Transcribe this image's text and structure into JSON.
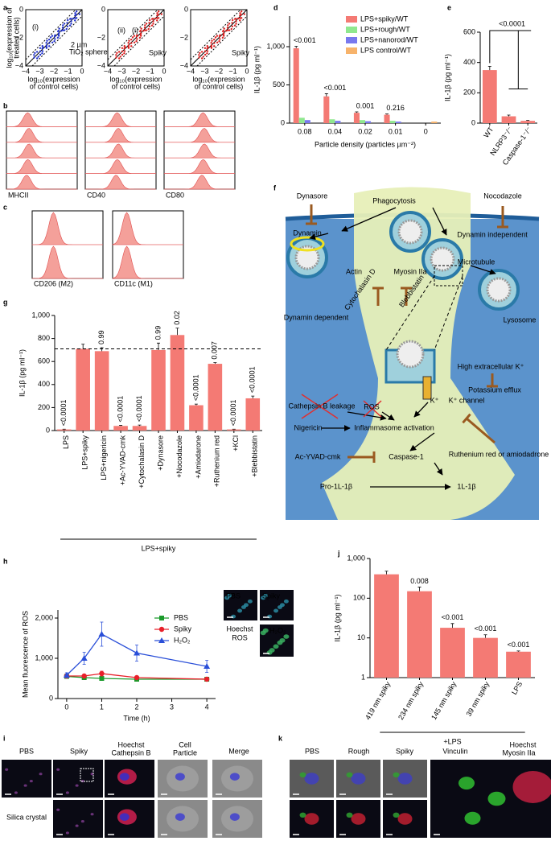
{
  "panels": [
    "a",
    "b",
    "c",
    "d",
    "e",
    "f",
    "g",
    "h",
    "i",
    "j",
    "k"
  ],
  "panel_a": {
    "y_label": [
      "log₁₀(expression of",
      "treated cells)"
    ],
    "x_label": [
      "log₁₀(expression",
      "of control cells)"
    ],
    "x_ticks": [
      "−4",
      "−3",
      "−2",
      "−1",
      "0"
    ],
    "y_ticks": [
      "0",
      "−2",
      "−4"
    ],
    "labels": [
      "(i)",
      "2 µm",
      "TiO₂ sphere",
      "(ii)",
      "(i)",
      "Spiky",
      "Spiky"
    ]
  },
  "panel_b": {
    "labels": [
      "MHCII",
      "CD40",
      "CD80"
    ]
  },
  "panel_c": {
    "labels": [
      "CD206 (M2)",
      "CD11c (M1)"
    ]
  },
  "panel_f": {
    "labels": [
      "Dynasore",
      "Phagocytosis",
      "Nocodazole",
      "Dynamin",
      "Dynamin independent",
      "Actin",
      "Myosin IIa",
      "Microtubule",
      "Dynamin dependent",
      "Cytochalasin D",
      "Blebbistatin",
      "Lysosome",
      "High extracellular K⁺",
      "Potassium efflux",
      "Cathepsin B leakage",
      "ROS",
      "K⁺",
      "K⁺ channel",
      "Nigericin",
      "Inflammasome activation",
      "Ruthenium red or amiodadrone",
      "Ac-YVAD-cmk",
      "Caspase-1",
      "Pro-1L-1β",
      "1L-1β"
    ]
  },
  "panel_h_images": {
    "labels": [
      "PBS",
      "Spiky",
      "Hoechst",
      "ROS",
      "H₂O₂"
    ]
  },
  "panel_i": {
    "labels": [
      "PBS",
      "Spiky",
      "Hoechst",
      "Cathepsin B",
      "Cell",
      "Particle",
      "Merge",
      "Silica crystal"
    ]
  },
  "panel_k": {
    "labels": [
      "PBS",
      "Rough",
      "Spiky",
      "Vinculin",
      "Hoechst",
      "Myosin IIa"
    ]
  },
  "chart_data": [
    {
      "type": "bar",
      "categories": [
        "0.08",
        "0.04",
        "0.02",
        "0.01",
        "0"
      ],
      "series": [
        {
          "name": "LPS+spiky/WT",
          "color": "#f47a74",
          "values": [
            980,
            350,
            135,
            110,
            null
          ],
          "errors": [
            25,
            35,
            12,
            10,
            null
          ]
        },
        {
          "name": "LPS+rough/WT",
          "color": "#8fe88f",
          "values": [
            70,
            50,
            40,
            30,
            null
          ]
        },
        {
          "name": "LPS+nanorod/WT",
          "color": "#7878ee",
          "values": [
            40,
            30,
            25,
            20,
            null
          ]
        },
        {
          "name": "LPS control/WT",
          "color": "#f7b36b",
          "values": [
            null,
            null,
            null,
            null,
            20
          ]
        }
      ],
      "ylim": [
        0,
        1400
      ],
      "yticks": [
        0,
        500,
        {
          "value": 1000,
          "label": "1,000"
        }
      ],
      "y_label": "IL-1β (pg ml⁻¹)",
      "x_label": "Particle density (particles µm⁻²)",
      "p_values": [
        "<0.001",
        "<0.001",
        "0.001",
        "0.216",
        null
      ],
      "legend": "upper right"
    },
    {
      "type": "bar",
      "categories": [
        "WT",
        "NLRP3⁻/⁻",
        "Caspase-1⁻/⁻"
      ],
      "values": [
        350,
        45,
        15
      ],
      "errors": [
        25,
        8,
        3
      ],
      "color": "#f47a74",
      "ylim": [
        0,
        600
      ],
      "yticks": [
        0,
        200,
        400,
        600
      ],
      "y_label": "IL-1β (pg ml⁻¹)",
      "p_value": "<0.0001"
    },
    {
      "type": "bar",
      "categories": [
        "LPS",
        "LPS+spiky",
        "LPS+nigericin",
        "+Ac-YVAD-cmk",
        "+Cytochalasin D",
        "+Dynasore",
        "+Nocodazole",
        "+Amiodarone",
        "+Ruthenium red",
        "+KCl",
        "+Blebbistatin"
      ],
      "values": [
        10,
        710,
        690,
        40,
        40,
        700,
        830,
        220,
        580,
        10,
        280
      ],
      "errors": [
        2,
        40,
        30,
        5,
        8,
        60,
        60,
        10,
        10,
        2,
        20
      ],
      "color": "#f47a74",
      "ylim": [
        0,
        1000
      ],
      "yticks": [
        0,
        200,
        400,
        600,
        800,
        {
          "value": 1000,
          "label": "1,000"
        }
      ],
      "y_label": "IL-1β (pg ml⁻¹)",
      "reference_line": 710,
      "p_values": [
        "<0.0001",
        null,
        "0.99",
        "<0.0001",
        "<0.0001",
        "0.99",
        "0.02",
        "<0.0001",
        "0.007",
        "<0.0001",
        "<0.0001"
      ],
      "group_label": "LPS+spiky"
    },
    {
      "type": "line",
      "x": [
        0,
        0.5,
        1,
        2,
        4
      ],
      "xlim": [
        -0.25,
        4.25
      ],
      "xticks": [
        0,
        1,
        2,
        3,
        4
      ],
      "ylim": [
        0,
        2200
      ],
      "yticks": [
        0,
        {
          "value": 1000,
          "label": "1,000"
        },
        {
          "value": 2000,
          "label": "2,000"
        }
      ],
      "x_label": "Time (h)",
      "y_label": "Mean fluorescence of ROS",
      "legend": "upper right",
      "series": [
        {
          "name": "PBS",
          "color": "#1a9a2a",
          "marker": "square",
          "values": [
            550,
            520,
            500,
            480,
            480
          ],
          "errors": [
            40,
            30,
            30,
            30,
            30
          ]
        },
        {
          "name": "Spiky",
          "color": "#e8202a",
          "marker": "circle",
          "values": [
            560,
            560,
            620,
            520,
            480
          ],
          "errors": [
            50,
            40,
            60,
            40,
            40
          ]
        },
        {
          "name": "H₂O₂",
          "color": "#2a4fd8",
          "marker": "triangle",
          "values": [
            580,
            1000,
            1600,
            1130,
            800
          ],
          "errors": [
            60,
            150,
            300,
            200,
            150
          ]
        }
      ]
    },
    {
      "type": "bar",
      "log_scale": true,
      "categories": [
        "419 nm spiky",
        "234 nm spiky",
        "145 nm spiky",
        "39 nm spiky",
        "LPS"
      ],
      "values": [
        400,
        150,
        18,
        10,
        4.5
      ],
      "errors": [
        80,
        40,
        5,
        2,
        0.2
      ],
      "color": "#f47a74",
      "ylim": [
        1,
        1000
      ],
      "yticks": [
        1,
        10,
        100,
        {
          "value": 1000,
          "label": "1,000"
        }
      ],
      "y_label": "IL-1β (pg ml⁻¹)",
      "p_values": [
        null,
        "0.008",
        "<0.001",
        "<0.001",
        "<0.001"
      ],
      "group_label": "+LPS"
    }
  ]
}
